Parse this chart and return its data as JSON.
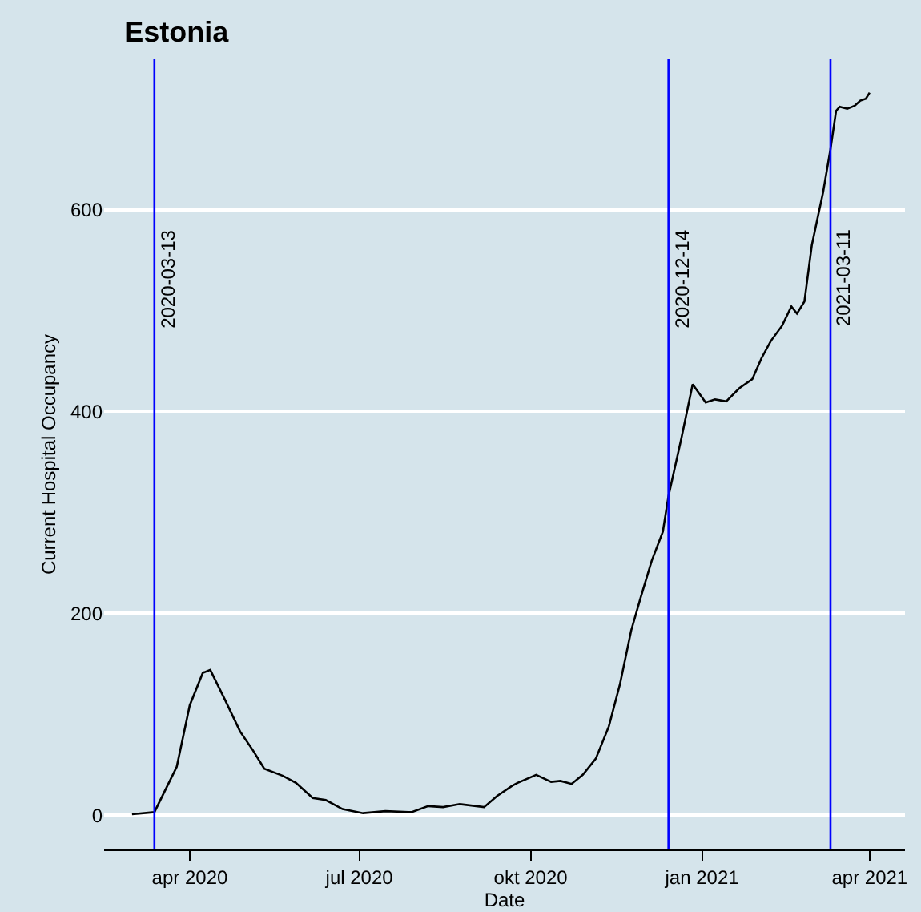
{
  "chart_data": {
    "type": "line",
    "title": "Estonia",
    "xlabel": "Date",
    "ylabel": "Current Hospital Occupancy",
    "x": [
      "2020-03-01",
      "2020-03-13",
      "2020-03-25",
      "2020-04-01",
      "2020-04-08",
      "2020-04-12",
      "2020-04-20",
      "2020-04-28",
      "2020-05-05",
      "2020-05-11",
      "2020-05-21",
      "2020-05-28",
      "2020-06-06",
      "2020-06-13",
      "2020-06-22",
      "2020-07-03",
      "2020-07-15",
      "2020-07-29",
      "2020-08-07",
      "2020-08-15",
      "2020-08-24",
      "2020-09-06",
      "2020-09-13",
      "2020-09-21",
      "2020-09-24",
      "2020-10-04",
      "2020-10-12",
      "2020-10-17",
      "2020-10-23",
      "2020-10-29",
      "2020-11-05",
      "2020-11-12",
      "2020-11-18",
      "2020-11-24",
      "2020-11-29",
      "2020-12-05",
      "2020-12-11",
      "2020-12-14",
      "2020-12-21",
      "2020-12-27",
      "2021-01-03",
      "2021-01-08",
      "2021-01-14",
      "2021-01-21",
      "2021-01-28",
      "2021-02-02",
      "2021-02-07",
      "2021-02-13",
      "2021-02-18",
      "2021-02-21",
      "2021-02-25",
      "2021-03-01",
      "2021-03-07",
      "2021-03-11",
      "2021-03-14",
      "2021-03-16",
      "2021-03-20",
      "2021-03-24",
      "2021-03-27",
      "2021-03-30",
      "2021-04-01"
    ],
    "series": [
      {
        "color": "#000000",
        "values": [
          1,
          3,
          48,
          109,
          141,
          144,
          114,
          83,
          64,
          46,
          39,
          32,
          17,
          15,
          6,
          2,
          4,
          3,
          9,
          8,
          11,
          8,
          19,
          29,
          32,
          40,
          33,
          34,
          31,
          40,
          56,
          88,
          130,
          183,
          215,
          252,
          281,
          316,
          374,
          427,
          409,
          412,
          410,
          423,
          432,
          453,
          470,
          485,
          504,
          497,
          509,
          565,
          617,
          660,
          698,
          702,
          700,
          703,
          708,
          710,
          716
        ]
      }
    ],
    "xlim": [
      "2020-02-15",
      "2021-04-20"
    ],
    "xticks": [
      {
        "value": "2020-04-01",
        "label": "apr 2020"
      },
      {
        "value": "2020-07-01",
        "label": "jul 2020"
      },
      {
        "value": "2020-10-01",
        "label": "okt 2020"
      },
      {
        "value": "2021-01-01",
        "label": "jan 2021"
      },
      {
        "value": "2021-04-01",
        "label": "apr 2021"
      }
    ],
    "ylim": [
      -34,
      749
    ],
    "yticks": [
      0,
      200,
      400,
      600
    ],
    "ref_lines": [
      {
        "axis": "x",
        "value": "2020-03-13",
        "label": "2020-03-13",
        "color": "#0000ff"
      },
      {
        "axis": "x",
        "value": "2020-12-14",
        "label": "2020-12-14",
        "color": "#0000ff"
      },
      {
        "axis": "x",
        "value": "2021-03-11",
        "label": "2021-03-11",
        "color": "#0000ff"
      }
    ],
    "grid": "y",
    "marker": "none",
    "line_style": "solid"
  }
}
